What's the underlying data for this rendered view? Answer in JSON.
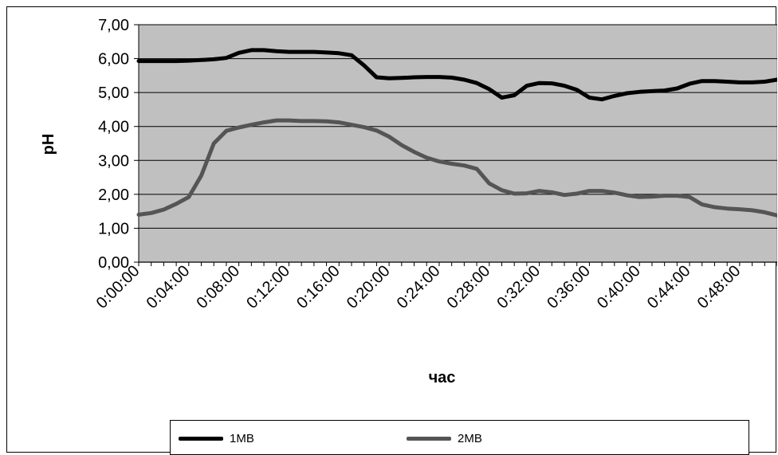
{
  "chart_data": {
    "type": "line",
    "title": "",
    "xlabel": "час",
    "ylabel": "pH",
    "ylim": [
      0,
      7
    ],
    "y_ticks": [
      "0,00",
      "1,00",
      "2,00",
      "3,00",
      "4,00",
      "5,00",
      "6,00",
      "7,00"
    ],
    "x_tick_labels": [
      "0:00:00",
      "0:04:00",
      "0:08:00",
      "0:12:00",
      "0:16:00",
      "0:20:00",
      "0:24:00",
      "0:28:00",
      "0:32:00",
      "0:36:00",
      "0:40:00",
      "0:44:00",
      "0:48:00"
    ],
    "x_unit_minutes": 1,
    "x_range_minutes": [
      0,
      51
    ],
    "grid": true,
    "legend_position": "bottom",
    "plot_background": "#c0c0c0",
    "series": [
      {
        "name": "1MB",
        "color": "#000000",
        "x": [
          0,
          1,
          2,
          3,
          4,
          5,
          6,
          7,
          8,
          9,
          10,
          11,
          12,
          13,
          14,
          15,
          16,
          17,
          18,
          19,
          20,
          21,
          22,
          23,
          24,
          25,
          26,
          27,
          28,
          29,
          30,
          31,
          32,
          33,
          34,
          35,
          36,
          37,
          38,
          39,
          40,
          41,
          42,
          43,
          44,
          45,
          46,
          47,
          48,
          49,
          50,
          51
        ],
        "values": [
          5.93,
          5.93,
          5.93,
          5.93,
          5.94,
          5.96,
          5.98,
          6.02,
          6.17,
          6.25,
          6.25,
          6.22,
          6.2,
          6.2,
          6.2,
          6.18,
          6.16,
          6.1,
          5.8,
          5.45,
          5.42,
          5.43,
          5.45,
          5.46,
          5.46,
          5.44,
          5.38,
          5.28,
          5.1,
          4.85,
          4.92,
          5.2,
          5.28,
          5.27,
          5.2,
          5.08,
          4.85,
          4.8,
          4.9,
          4.98,
          5.02,
          5.04,
          5.06,
          5.12,
          5.26,
          5.34,
          5.34,
          5.32,
          5.3,
          5.3,
          5.32,
          5.38
        ]
      },
      {
        "name": "2MB",
        "color": "#555555",
        "x": [
          0,
          1,
          2,
          3,
          4,
          5,
          6,
          7,
          8,
          9,
          10,
          11,
          12,
          13,
          14,
          15,
          16,
          17,
          18,
          19,
          20,
          21,
          22,
          23,
          24,
          25,
          26,
          27,
          28,
          29,
          30,
          31,
          32,
          33,
          34,
          35,
          36,
          37,
          38,
          39,
          40,
          41,
          42,
          43,
          44,
          45,
          46,
          47,
          48,
          49,
          50,
          51
        ],
        "values": [
          1.4,
          1.45,
          1.55,
          1.72,
          1.92,
          2.55,
          3.5,
          3.87,
          3.97,
          4.05,
          4.12,
          4.18,
          4.18,
          4.16,
          4.16,
          4.15,
          4.12,
          4.05,
          3.98,
          3.88,
          3.7,
          3.45,
          3.25,
          3.08,
          2.97,
          2.9,
          2.85,
          2.75,
          2.32,
          2.12,
          2.02,
          2.03,
          2.1,
          2.06,
          1.98,
          2.02,
          2.1,
          2.1,
          2.05,
          1.97,
          1.92,
          1.93,
          1.96,
          1.96,
          1.92,
          1.7,
          1.62,
          1.58,
          1.56,
          1.53,
          1.47,
          1.38
        ]
      }
    ]
  }
}
